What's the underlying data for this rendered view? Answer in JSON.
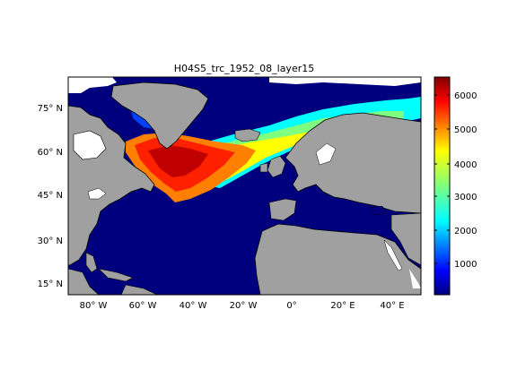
{
  "figure": {
    "title": "H04S5_trc_1952_08_layer15"
  },
  "map": {
    "lon_ticks": [
      "80° W",
      "60° W",
      "40° W",
      "20° W",
      "0°",
      "20° E",
      "40° E"
    ],
    "lat_ticks": [
      "75° N",
      "60° N",
      "45° N",
      "30° N",
      "15° N"
    ],
    "colors": {
      "land": "#a0a0a0",
      "ocean_low": "#00007f",
      "missing": "#ffffff"
    }
  },
  "colorbar": {
    "ticks": [
      "6000",
      "5000",
      "4000",
      "3000",
      "2000",
      "1000"
    ],
    "range": [
      0,
      6600
    ],
    "colormap": "jet"
  }
}
